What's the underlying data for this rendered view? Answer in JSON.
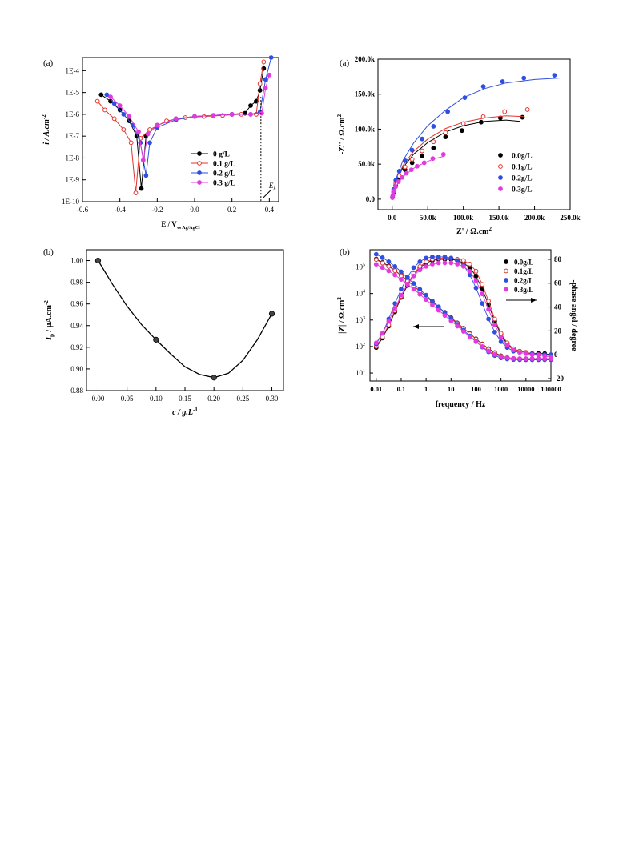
{
  "chart_data": [
    {
      "id": "tl",
      "type": "line",
      "panel_label": "(a)",
      "xlabel": "E / V",
      "xlabel_sub": "vs Ag/AgCl",
      "ylabel": "i / A.cm",
      "ylabel_sup": "-2",
      "xlim": [
        -0.6,
        0.45
      ],
      "ylim_log10": [
        -10,
        -3.4
      ],
      "y_scale": "log",
      "x_ticks": [
        -0.6,
        -0.4,
        -0.2,
        0.0,
        0.2,
        0.4
      ],
      "x_tick_labels": [
        "-0.6",
        "-0.4",
        "-0.2",
        "0.0",
        "0.2",
        "0.4"
      ],
      "y_ticks_log10": [
        -10,
        -9,
        -8,
        -7,
        -6,
        -5,
        -4
      ],
      "y_tick_labels": [
        "1E-10",
        "1E-9",
        "1E-8",
        "1E-7",
        "1E-6",
        "1E-5",
        "1E-4"
      ],
      "legend_position": "center-right",
      "annotation": {
        "text": "E",
        "sub": "b",
        "x": 0.355
      },
      "series": [
        {
          "name": "0 g/L",
          "color": "#000000",
          "marker": "filled-circle",
          "x": [
            -0.5,
            -0.45,
            -0.4,
            -0.35,
            -0.31,
            -0.285,
            -0.26,
            -0.2,
            -0.1,
            0.0,
            0.1,
            0.2,
            0.27,
            0.3,
            0.33,
            0.35,
            0.37
          ],
          "log10_i": [
            -5.1,
            -5.4,
            -5.8,
            -6.3,
            -7.0,
            -9.4,
            -7.0,
            -6.5,
            -6.2,
            -6.1,
            -6.05,
            -6.0,
            -5.95,
            -5.6,
            -5.4,
            -4.9,
            -3.9
          ]
        },
        {
          "name": "0.1 g/L",
          "color": "#e3342f",
          "marker": "open-circle",
          "x": [
            -0.52,
            -0.48,
            -0.43,
            -0.38,
            -0.34,
            -0.315,
            -0.29,
            -0.24,
            -0.15,
            -0.05,
            0.05,
            0.15,
            0.25,
            0.33,
            0.35,
            0.37
          ],
          "log10_i": [
            -5.4,
            -5.8,
            -6.2,
            -6.7,
            -7.3,
            -9.6,
            -7.1,
            -6.7,
            -6.3,
            -6.15,
            -6.1,
            -6.05,
            -6.0,
            -6.0,
            -4.6,
            -3.6
          ]
        },
        {
          "name": "0.2 g/L",
          "color": "#2f4fe0",
          "marker": "filled-circle",
          "x": [
            -0.47,
            -0.43,
            -0.38,
            -0.33,
            -0.29,
            -0.26,
            -0.24,
            -0.2,
            -0.1,
            0.0,
            0.1,
            0.2,
            0.3,
            0.35,
            0.38,
            0.41
          ],
          "log10_i": [
            -5.1,
            -5.5,
            -6.0,
            -6.5,
            -7.3,
            -8.8,
            -7.3,
            -6.6,
            -6.25,
            -6.1,
            -6.05,
            -6.0,
            -6.0,
            -5.9,
            -4.4,
            -3.4
          ]
        },
        {
          "name": "0.3 g/L",
          "color": "#e23ae0",
          "marker": "filled-circle",
          "x": [
            -0.45,
            -0.4,
            -0.35,
            -0.3,
            -0.275,
            -0.25,
            -0.2,
            -0.1,
            0.0,
            0.1,
            0.2,
            0.3,
            0.36,
            0.38,
            0.4
          ],
          "log10_i": [
            -5.2,
            -5.6,
            -6.1,
            -6.8,
            -8.1,
            -6.9,
            -6.5,
            -6.2,
            -6.1,
            -6.05,
            -6.0,
            -6.0,
            -5.95,
            -4.8,
            -4.2
          ]
        }
      ]
    },
    {
      "id": "tr",
      "type": "scatter",
      "panel_label": "(a)",
      "xlabel": "Z' / Ω.cm",
      "xlabel_sup": "2",
      "ylabel": "-Z'' / Ω.cm",
      "ylabel_sup": "2",
      "xlim": [
        -20000,
        250000
      ],
      "ylim": [
        -15000,
        200000
      ],
      "x_ticks": [
        0,
        50000,
        100000,
        150000,
        200000,
        250000
      ],
      "x_tick_labels": [
        "0.0",
        "50.0k",
        "100.0k",
        "150.0k",
        "200.0k",
        "250.0k"
      ],
      "y_ticks": [
        0,
        50000,
        100000,
        150000,
        200000
      ],
      "y_tick_labels": [
        "0.0",
        "50.0k",
        "100.0k",
        "150.0k",
        "200.0k"
      ],
      "legend_position": "center-right",
      "series": [
        {
          "name": "0.0g/L",
          "color": "#000000",
          "marker": "filled-circle",
          "x": [
            500,
            2000,
            5000,
            10000,
            18000,
            28000,
            42000,
            58000,
            75000,
            98000,
            125000,
            152000,
            183000
          ],
          "y": [
            3000,
            10000,
            20000,
            31000,
            42000,
            52000,
            62000,
            73000,
            89000,
            98000,
            110000,
            116000,
            117000
          ],
          "fit_x": [
            0,
            5000,
            15000,
            30000,
            50000,
            75000,
            100000,
            130000,
            160000,
            180000
          ],
          "fit_y": [
            0,
            24000,
            45000,
            64000,
            81000,
            96000,
            105000,
            111000,
            113000,
            111000
          ]
        },
        {
          "name": "0.1g/L",
          "color": "#e3342f",
          "marker": "open-circle",
          "x": [
            500,
            2000,
            5000,
            10000,
            18000,
            28000,
            42000,
            58000,
            75000,
            100000,
            128000,
            158000,
            190000
          ],
          "y": [
            3000,
            11000,
            22000,
            33000,
            46000,
            57000,
            69000,
            82000,
            95000,
            108000,
            118000,
            125000,
            128000
          ],
          "fit_x": [
            0,
            5000,
            15000,
            30000,
            50000,
            75000,
            100000,
            130000,
            160000,
            185000
          ],
          "fit_y": [
            0,
            25000,
            48000,
            68000,
            86000,
            101000,
            110000,
            116000,
            119000,
            118000
          ]
        },
        {
          "name": "0.2g/L",
          "color": "#2f4fe0",
          "marker": "filled-circle",
          "x": [
            500,
            2000,
            5000,
            10000,
            18000,
            28000,
            42000,
            58000,
            78000,
            102000,
            128000,
            155000,
            185000,
            228000
          ],
          "y": [
            3500,
            14000,
            27000,
            40000,
            55000,
            70000,
            86000,
            104000,
            125000,
            145000,
            161000,
            168000,
            173000,
            177000
          ],
          "fit_x": [
            0,
            5000,
            15000,
            30000,
            50000,
            75000,
            100000,
            130000,
            160000,
            200000,
            235000
          ],
          "fit_y": [
            0,
            28000,
            55000,
            80000,
            105000,
            127000,
            145000,
            158000,
            166000,
            171000,
            173000
          ]
        },
        {
          "name": "0.3g/L",
          "color": "#e23ae0",
          "marker": "filled-circle",
          "x": [
            300,
            1000,
            2500,
            5000,
            9000,
            14000,
            20000,
            27000,
            35000,
            45000,
            57000,
            72000
          ],
          "y": [
            2000,
            6000,
            12000,
            18000,
            25000,
            31000,
            37000,
            42000,
            47000,
            52000,
            58000,
            64000
          ],
          "fit_x": [
            0,
            5000,
            15000,
            30000,
            45000,
            60000,
            72000
          ],
          "fit_y": [
            0,
            18000,
            32000,
            44000,
            52000,
            58000,
            61000
          ]
        }
      ]
    },
    {
      "id": "bl",
      "type": "line",
      "panel_label": "(b)",
      "xlabel": "c / g.L",
      "xlabel_sup": "-1",
      "ylabel": "I",
      "ylabel_sub": "p",
      "ylabel_rest": " / μA.cm",
      "ylabel_sup": "-2",
      "xlim": [
        -0.02,
        0.32
      ],
      "ylim": [
        0.88,
        1.01
      ],
      "x_ticks": [
        0.0,
        0.05,
        0.1,
        0.15,
        0.2,
        0.25,
        0.3
      ],
      "x_tick_labels": [
        "0.00",
        "0.05",
        "0.10",
        "0.15",
        "0.20",
        "0.25",
        "0.30"
      ],
      "y_ticks": [
        0.88,
        0.9,
        0.92,
        0.94,
        0.96,
        0.98,
        1.0
      ],
      "y_tick_labels": [
        "0.88",
        "0.90",
        "0.92",
        "0.94",
        "0.96",
        "0.98",
        "1.00"
      ],
      "series": [
        {
          "color": "#000000",
          "marker": "filled-circle",
          "x": [
            0.0,
            0.1,
            0.2,
            0.3
          ],
          "y": [
            1.0,
            0.927,
            0.892,
            0.951
          ],
          "fit_x": [
            0.0,
            0.025,
            0.05,
            0.075,
            0.1,
            0.125,
            0.15,
            0.175,
            0.2,
            0.225,
            0.25,
            0.275,
            0.3
          ],
          "fit_y": [
            1.0,
            0.978,
            0.958,
            0.941,
            0.927,
            0.914,
            0.902,
            0.895,
            0.892,
            0.896,
            0.908,
            0.927,
            0.951
          ]
        }
      ]
    },
    {
      "id": "br",
      "type": "scatter",
      "panel_label": "(b)",
      "xlabel": "frequency / Hz",
      "ylabel": "|Z| / Ω.cm",
      "ylabel_sup": "2",
      "y2label": "-phase angel / degree",
      "x_scale": "log",
      "y_scale": "log",
      "xlim_log10": [
        -2.25,
        5
      ],
      "ylim_log10": [
        0.7,
        5.65
      ],
      "y2lim": [
        -22,
        88
      ],
      "x_ticks_log10": [
        -2,
        -1,
        0,
        1,
        2,
        3,
        4,
        5
      ],
      "x_tick_labels": [
        "0.01",
        "0.1",
        "1",
        "10",
        "100",
        "1000",
        "10000",
        "100000"
      ],
      "y_ticks_log10": [
        1,
        2,
        3,
        4,
        5
      ],
      "y_tick_labels": [
        "10",
        "10",
        "10",
        "10",
        "10"
      ],
      "y_tick_sups": [
        "1",
        "2",
        "3",
        "4",
        "5"
      ],
      "y2_ticks": [
        -20,
        0,
        20,
        40,
        60,
        80
      ],
      "y2_tick_labels": [
        "-20",
        "0",
        "20",
        "40",
        "60",
        "80"
      ],
      "legend_position": "top-right",
      "series": [
        {
          "name": "0.0g/L",
          "color": "#000000",
          "marker": "filled-circle",
          "log10_f": [
            -2,
            -1.75,
            -1.5,
            -1.25,
            -1,
            -0.75,
            -0.5,
            -0.25,
            0,
            0.25,
            0.5,
            0.75,
            1,
            1.25,
            1.5,
            1.75,
            2,
            2.25,
            2.5,
            2.75,
            3,
            3.25,
            3.5,
            3.75,
            4,
            4.25,
            4.5,
            4.75,
            5
          ],
          "log10_z": [
            5.3,
            5.17,
            5.04,
            4.87,
            4.68,
            4.49,
            4.29,
            4.09,
            3.89,
            3.69,
            3.49,
            3.29,
            3.09,
            2.89,
            2.69,
            2.49,
            2.29,
            2.1,
            1.92,
            1.77,
            1.65,
            1.58,
            1.55,
            1.54,
            1.54,
            1.54,
            1.54,
            1.54,
            1.54
          ],
          "phase": [
            6,
            14,
            24,
            36,
            48,
            58,
            67,
            73,
            77,
            79,
            80,
            80,
            80,
            79,
            77,
            73,
            66,
            55,
            42,
            28,
            17,
            9,
            5,
            3,
            2,
            1,
            1,
            1,
            0
          ]
        },
        {
          "name": "0.1g/L",
          "color": "#e3342f",
          "marker": "open-circle",
          "log10_f": [
            -2,
            -1.75,
            -1.5,
            -1.25,
            -1,
            -0.75,
            -0.5,
            -0.25,
            0,
            0.25,
            0.5,
            0.75,
            1,
            1.25,
            1.5,
            1.75,
            2,
            2.25,
            2.5,
            2.75,
            3,
            3.25,
            3.5,
            3.75,
            4,
            4.25,
            4.5,
            4.75,
            5
          ],
          "log10_z": [
            5.28,
            5.15,
            5.02,
            4.86,
            4.67,
            4.48,
            4.28,
            4.08,
            3.88,
            3.68,
            3.48,
            3.28,
            3.08,
            2.88,
            2.68,
            2.48,
            2.28,
            2.09,
            1.9,
            1.75,
            1.64,
            1.58,
            1.55,
            1.54,
            1.53,
            1.53,
            1.53,
            1.53,
            1.53
          ],
          "phase": [
            7,
            15,
            25,
            37,
            49,
            59,
            68,
            74,
            78,
            80,
            81,
            81,
            81,
            80,
            79,
            76,
            70,
            59,
            45,
            30,
            18,
            10,
            5,
            3,
            2,
            1,
            0,
            0,
            -1
          ]
        },
        {
          "name": "0.2g/L",
          "color": "#2f4fe0",
          "marker": "filled-circle",
          "log10_f": [
            -2,
            -1.75,
            -1.5,
            -1.25,
            -1,
            -0.75,
            -0.5,
            -0.25,
            0,
            0.25,
            0.5,
            0.75,
            1,
            1.25,
            1.5,
            1.75,
            2,
            2.25,
            2.5,
            2.75,
            3,
            3.25,
            3.5,
            3.75,
            4,
            4.25,
            4.5,
            4.75,
            5
          ],
          "log10_z": [
            5.48,
            5.35,
            5.2,
            5.02,
            4.82,
            4.6,
            4.38,
            4.16,
            3.94,
            3.72,
            3.5,
            3.28,
            3.06,
            2.84,
            2.62,
            2.4,
            2.19,
            1.98,
            1.8,
            1.66,
            1.57,
            1.53,
            1.51,
            1.5,
            1.5,
            1.5,
            1.5,
            1.5,
            1.5
          ],
          "phase": [
            9,
            18,
            30,
            43,
            55,
            65,
            73,
            78,
            81,
            82,
            82,
            82,
            81,
            79,
            75,
            67,
            56,
            43,
            30,
            19,
            11,
            6,
            3,
            2,
            1,
            1,
            0,
            0,
            0
          ]
        },
        {
          "name": "0.3g/L",
          "color": "#e23ae0",
          "marker": "filled-circle",
          "log10_f": [
            -2,
            -1.75,
            -1.5,
            -1.25,
            -1,
            -0.75,
            -0.5,
            -0.25,
            0,
            0.25,
            0.5,
            0.75,
            1,
            1.25,
            1.5,
            1.75,
            2,
            2.25,
            2.5,
            2.75,
            3,
            3.25,
            3.5,
            3.75,
            4,
            4.25,
            4.5,
            4.75,
            5
          ],
          "log10_z": [
            5.1,
            4.98,
            4.85,
            4.7,
            4.53,
            4.35,
            4.16,
            3.97,
            3.77,
            3.57,
            3.37,
            3.17,
            2.97,
            2.77,
            2.57,
            2.37,
            2.18,
            2.0,
            1.83,
            1.7,
            1.62,
            1.57,
            1.55,
            1.54,
            1.54,
            1.54,
            1.54,
            1.54,
            1.54
          ],
          "phase": [
            10,
            18,
            28,
            39,
            50,
            59,
            66,
            71,
            74,
            76,
            77,
            77,
            77,
            76,
            74,
            70,
            62,
            51,
            38,
            25,
            15,
            8,
            4,
            2,
            1,
            0,
            0,
            -1,
            -2
          ]
        }
      ]
    }
  ]
}
